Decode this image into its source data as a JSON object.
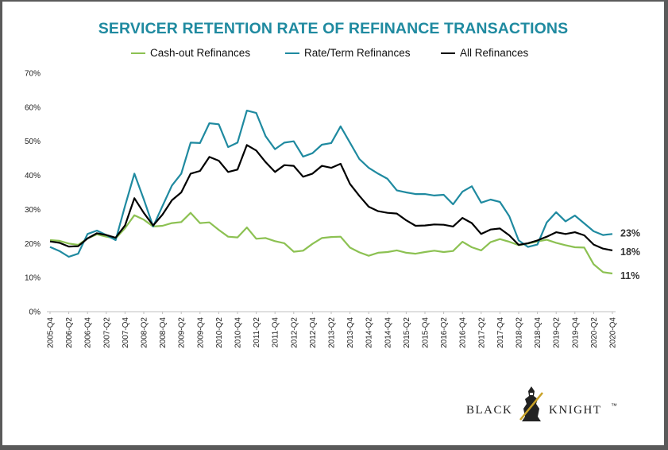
{
  "chart_data": {
    "type": "line",
    "title": "SERVICER RETENTION RATE OF REFINANCE TRANSACTIONS",
    "ylim": [
      0,
      70
    ],
    "yticks": [
      "0%",
      "10%",
      "20%",
      "30%",
      "40%",
      "50%",
      "60%",
      "70%"
    ],
    "x": [
      "2005-Q4",
      "2006-Q1",
      "2006-Q2",
      "2006-Q3",
      "2006-Q4",
      "2007-Q1",
      "2007-Q2",
      "2007-Q3",
      "2007-Q4",
      "2008-Q1",
      "2008-Q2",
      "2008-Q3",
      "2008-Q4",
      "2009-Q1",
      "2009-Q2",
      "2009-Q3",
      "2009-Q4",
      "2010-Q1",
      "2010-Q2",
      "2010-Q3",
      "2010-Q4",
      "2011-Q1",
      "2011-Q2",
      "2011-Q3",
      "2011-Q4",
      "2012-Q1",
      "2012-Q2",
      "2012-Q3",
      "2012-Q4",
      "2013-Q1",
      "2013-Q2",
      "2013-Q3",
      "2013-Q4",
      "2014-Q1",
      "2014-Q2",
      "2014-Q3",
      "2014-Q4",
      "2015-Q1",
      "2015-Q2",
      "2015-Q3",
      "2015-Q4",
      "2016-Q1",
      "2016-Q2",
      "2016-Q3",
      "2016-Q4",
      "2017-Q1",
      "2017-Q2",
      "2017-Q3",
      "2017-Q4",
      "2018-Q1",
      "2018-Q2",
      "2018-Q3",
      "2018-Q4",
      "2019-Q1",
      "2019-Q2",
      "2019-Q3",
      "2019-Q4",
      "2020-Q1",
      "2020-Q2",
      "2020-Q3",
      "2020-Q4"
    ],
    "xtick_labels": [
      "2005-Q4",
      "2006-Q2",
      "2006-Q4",
      "2007-Q2",
      "2007-Q4",
      "2008-Q2",
      "2008-Q4",
      "2009-Q2",
      "2009-Q4",
      "2010-Q2",
      "2010-Q4",
      "2011-Q2",
      "2011-Q4",
      "2012-Q2",
      "2012-Q4",
      "2013-Q2",
      "2013-Q4",
      "2014-Q2",
      "2014-Q4",
      "2015-Q2",
      "2015-Q4",
      "2016-Q2",
      "2016-Q4",
      "2017-Q2",
      "2017-Q4",
      "2018-Q2",
      "2018-Q4",
      "2019-Q2",
      "2019-Q4",
      "2020-Q2",
      "2020-Q4"
    ],
    "series": [
      {
        "name": "Cash-out Refinances",
        "color": "#8cc152",
        "end_label": "11%",
        "values": [
          21,
          20.8,
          20,
          19.6,
          21.5,
          22.7,
          22,
          21.5,
          24.5,
          28.3,
          27,
          25,
          25.2,
          26,
          26.3,
          29,
          26,
          26.2,
          24,
          22,
          21.8,
          24.7,
          21.4,
          21.6,
          20.7,
          20.1,
          17.6,
          17.9,
          19.9,
          21.6,
          21.9,
          22,
          18.8,
          17.4,
          16.4,
          17.3,
          17.5,
          18,
          17.3,
          17,
          17.5,
          17.9,
          17.5,
          17.8,
          20.5,
          18.9,
          18,
          20.4,
          21.3,
          20.5,
          19.5,
          20,
          20.6,
          21.1,
          20.2,
          19.5,
          18.9,
          18.8,
          13.9,
          11.6,
          11.2
        ]
      },
      {
        "name": "Rate/Term Refinances",
        "color": "#1f8aa0",
        "end_label": "23%",
        "values": [
          19,
          17.8,
          16.1,
          17,
          22.8,
          23.8,
          22.5,
          21,
          31,
          40.5,
          33,
          25,
          31,
          37,
          40.5,
          49.6,
          49.5,
          55.3,
          55,
          48.3,
          49.6,
          59,
          58.3,
          51.5,
          47.7,
          49.6,
          50,
          45.5,
          46.5,
          49,
          49.5,
          54.4,
          49.6,
          44.8,
          42.2,
          40.5,
          39,
          35.6,
          35,
          34.5,
          34.5,
          34.1,
          34.3,
          31.5,
          35.2,
          36.8,
          32,
          32.9,
          32.2,
          28,
          20.9,
          19,
          19.7,
          26.2,
          29.2,
          26.5,
          28.2,
          25.9,
          23.6,
          22.5,
          22.8
        ]
      },
      {
        "name": "All Refinances",
        "color": "#000000",
        "end_label": "18%",
        "values": [
          20.6,
          20.2,
          19.1,
          19.2,
          21.5,
          23,
          22.5,
          21.7,
          25.3,
          33.3,
          29,
          25.3,
          28.5,
          32.7,
          35,
          40.5,
          41.3,
          45.4,
          44.3,
          41,
          41.7,
          48.9,
          47.3,
          43.9,
          41,
          43,
          42.8,
          39.6,
          40.5,
          42.8,
          42.2,
          43.4,
          37.5,
          34,
          30.8,
          29.5,
          29,
          28.8,
          26.8,
          25.2,
          25.3,
          25.6,
          25.5,
          25,
          27.5,
          26,
          22.8,
          24.1,
          24.4,
          22.4,
          19.6,
          20.1,
          20.9,
          22,
          23.3,
          22.8,
          23.3,
          22.4,
          19.7,
          18.5,
          18
        ]
      }
    ]
  },
  "logo": {
    "left_text": "BLACK",
    "right_text": "KNIGHT",
    "mark": "™"
  }
}
